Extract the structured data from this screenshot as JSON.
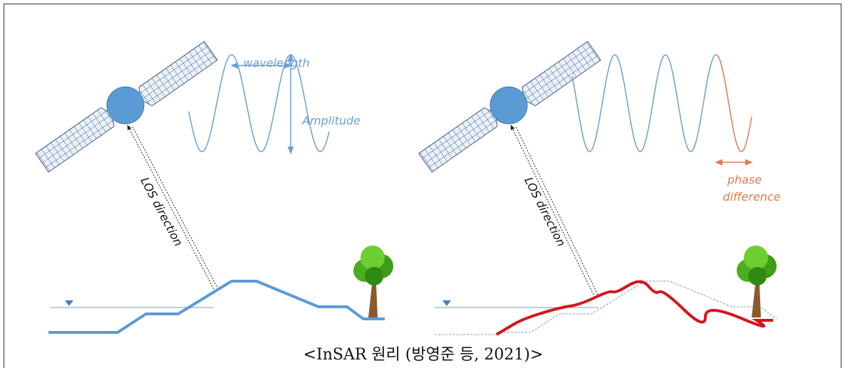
{
  "left_panel": {
    "wavelength_label": "wavelength",
    "amplitude_label": "Amplitude",
    "los_label": "LOS direction"
  },
  "right_panel": {
    "los_label": "LOS direction",
    "phase_label_line1": "phase",
    "phase_label_line2": "difference"
  },
  "caption": "<InSAR 원리 (방영준 등, 2021)>"
}
